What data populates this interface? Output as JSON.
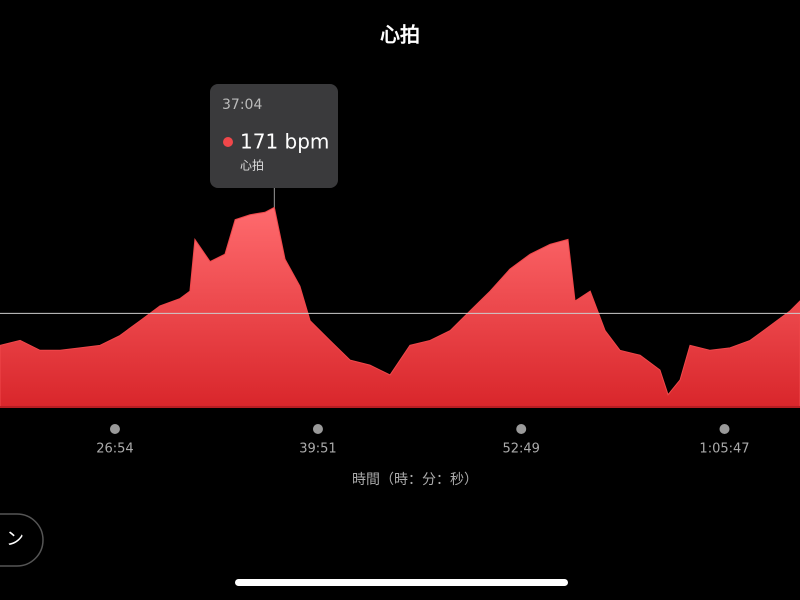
{
  "chart_data": {
    "type": "area",
    "title": "心拍",
    "x_label": "時間（時：分：秒）",
    "x": [
      1174,
      1251,
      1327,
      1404,
      1480,
      1557,
      1633,
      1710,
      1786,
      1863,
      1901,
      1920,
      1978,
      2035,
      2074,
      2131,
      2188,
      2224,
      2265,
      2322,
      2361,
      2437,
      2514,
      2590,
      2667,
      2743,
      2820,
      2897,
      2973,
      3050,
      3126,
      3203,
      3279,
      3348,
      3375,
      3433,
      3490,
      3547,
      3624,
      3700,
      3731,
      3777,
      3815,
      3892,
      3968,
      4045,
      4122,
      4198,
      4236
    ],
    "series": [
      {
        "name": "心拍",
        "color": "#f0474a",
        "values": [
          115,
          117,
          113,
          113,
          114,
          115,
          119,
          125,
          131,
          134,
          137,
          158,
          149,
          152,
          166,
          168,
          169,
          171,
          150,
          139,
          125,
          117,
          109,
          107,
          103,
          115,
          117,
          121,
          129,
          137,
          146,
          152,
          156,
          158,
          133,
          137,
          121,
          113,
          111,
          105,
          95,
          101,
          115,
          113,
          114,
          117,
          123,
          129,
          133
        ]
      }
    ],
    "xlim": [
      1174,
      4236
    ],
    "ylim": [
      90,
      176
    ],
    "xticks": [
      {
        "value": 1614,
        "label": "26:54"
      },
      {
        "value": 2391,
        "label": "39:51"
      },
      {
        "value": 3169,
        "label": "52:49"
      },
      {
        "value": 3947,
        "label": "1:05:47"
      }
    ],
    "reference_line": 128,
    "tooltip": {
      "time": "37:04",
      "value": 171,
      "value_label": "171 bpm",
      "index": 17
    },
    "button": "ン"
  }
}
